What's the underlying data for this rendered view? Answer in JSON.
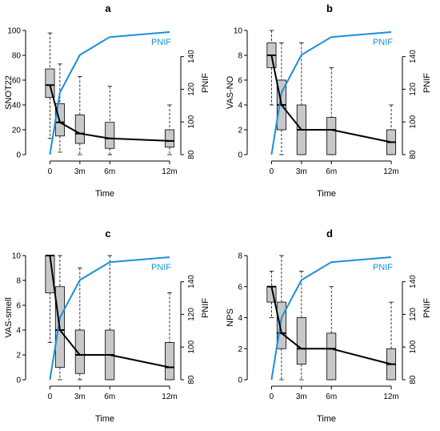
{
  "figure": {
    "panels": [
      "a",
      "b",
      "c",
      "d"
    ]
  },
  "chart_data": [
    {
      "type": "box",
      "title": "a",
      "xlabel": "Time",
      "ylabel": "SNOT22",
      "y2label": "PNIF",
      "categories": [
        "0",
        "",
        "3m",
        "6m",
        "12m"
      ],
      "x": [
        0,
        1,
        3,
        6,
        12
      ],
      "x_tick_values": [
        0,
        3,
        6,
        12
      ],
      "x_tick_labels": [
        "0",
        "3m",
        "6m",
        "12m"
      ],
      "ylim": [
        0,
        100
      ],
      "yticks": [
        0,
        20,
        40,
        60,
        80,
        100
      ],
      "y2lim": [
        80,
        156
      ],
      "y2ticks": [
        80,
        100,
        120,
        140
      ],
      "boxes": [
        {
          "x": 0,
          "min": 13,
          "q1": 46,
          "median": 56,
          "q3": 69,
          "max": 98
        },
        {
          "x": 1,
          "min": 2,
          "q1": 15,
          "median": 26,
          "q3": 41,
          "max": 73
        },
        {
          "x": 3,
          "min": 0,
          "q1": 9,
          "median": 17,
          "q3": 32,
          "max": 63
        },
        {
          "x": 6,
          "min": 0,
          "q1": 5,
          "median": 13,
          "q3": 26,
          "max": 55
        },
        {
          "x": 12,
          "min": 0,
          "q1": 6,
          "median": 11,
          "q3": 20,
          "max": 40
        }
      ],
      "medians_line": [
        56,
        26,
        17,
        13,
        11
      ],
      "pnif_line": [
        80,
        118,
        141,
        152,
        155
      ],
      "legend": "PNIF",
      "legend_position": "top-right"
    },
    {
      "type": "box",
      "title": "b",
      "xlabel": "Time",
      "ylabel": "VAS-NO",
      "y2label": "PNIF",
      "categories": [
        "0",
        "",
        "3m",
        "6m",
        "12m"
      ],
      "x": [
        0,
        1,
        3,
        6,
        12
      ],
      "x_tick_values": [
        0,
        3,
        6,
        12
      ],
      "x_tick_labels": [
        "0",
        "3m",
        "6m",
        "12m"
      ],
      "ylim": [
        0,
        10
      ],
      "yticks": [
        0,
        2,
        4,
        6,
        8,
        10
      ],
      "y2lim": [
        80,
        156
      ],
      "y2ticks": [
        80,
        100,
        120,
        140
      ],
      "boxes": [
        {
          "x": 0,
          "min": 4,
          "q1": 7,
          "median": 8,
          "q3": 9,
          "max": 10
        },
        {
          "x": 1,
          "min": 0,
          "q1": 2,
          "median": 4,
          "q3": 6,
          "max": 9
        },
        {
          "x": 3,
          "min": 0,
          "q1": 0,
          "median": 2,
          "q3": 4,
          "max": 9
        },
        {
          "x": 6,
          "min": 0,
          "q1": 0,
          "median": 2,
          "q3": 3,
          "max": 7
        },
        {
          "x": 12,
          "min": 0,
          "q1": 0,
          "median": 1,
          "q3": 2,
          "max": 4
        }
      ],
      "medians_line": [
        8,
        4,
        2,
        2,
        1
      ],
      "pnif_line": [
        80,
        118,
        141,
        152,
        155
      ],
      "legend": "PNIF",
      "legend_position": "top-right"
    },
    {
      "type": "box",
      "title": "c",
      "xlabel": "Time",
      "ylabel": "VAS-smell",
      "y2label": "PNIF",
      "categories": [
        "0",
        "",
        "3m",
        "6m",
        "12m"
      ],
      "x": [
        0,
        1,
        3,
        6,
        12
      ],
      "x_tick_values": [
        0,
        3,
        6,
        12
      ],
      "x_tick_labels": [
        "0",
        "3m",
        "6m",
        "12m"
      ],
      "ylim": [
        0,
        10
      ],
      "yticks": [
        0,
        2,
        4,
        6,
        8,
        10
      ],
      "y2lim": [
        80,
        156
      ],
      "y2ticks": [
        80,
        100,
        120,
        140
      ],
      "boxes": [
        {
          "x": 0,
          "min": 3,
          "q1": 7,
          "median": 10,
          "q3": 10,
          "max": 10
        },
        {
          "x": 1,
          "min": 0,
          "q1": 1,
          "median": 4,
          "q3": 7.5,
          "max": 10
        },
        {
          "x": 3,
          "min": 0,
          "q1": 0.5,
          "median": 2,
          "q3": 4,
          "max": 9
        },
        {
          "x": 6,
          "min": 0,
          "q1": 0,
          "median": 2,
          "q3": 4,
          "max": 10
        },
        {
          "x": 12,
          "min": 0,
          "q1": 0,
          "median": 1,
          "q3": 3,
          "max": 7
        }
      ],
      "medians_line": [
        10,
        4,
        2,
        2,
        1
      ],
      "pnif_line": [
        80,
        118,
        141,
        152,
        155
      ],
      "legend": "PNIF",
      "legend_position": "top-right"
    },
    {
      "type": "box",
      "title": "d",
      "xlabel": "Time",
      "ylabel": "NPS",
      "y2label": "PNIF",
      "categories": [
        "0",
        "",
        "3m",
        "6m",
        "12m"
      ],
      "x": [
        0,
        1,
        3,
        6,
        12
      ],
      "x_tick_values": [
        0,
        3,
        6,
        12
      ],
      "x_tick_labels": [
        "0",
        "3m",
        "6m",
        "12m"
      ],
      "ylim": [
        0,
        8
      ],
      "yticks": [
        0,
        2,
        4,
        6,
        8
      ],
      "y2lim": [
        80,
        156
      ],
      "y2ticks": [
        80,
        100,
        120,
        140
      ],
      "boxes": [
        {
          "x": 0,
          "min": 4,
          "q1": 5,
          "median": 6,
          "q3": 6,
          "max": 7
        },
        {
          "x": 1,
          "min": 0,
          "q1": 2,
          "median": 3,
          "q3": 5,
          "max": 8
        },
        {
          "x": 3,
          "min": 0,
          "q1": 1,
          "median": 2,
          "q3": 4,
          "max": 7
        },
        {
          "x": 6,
          "min": 0,
          "q1": 0,
          "median": 2,
          "q3": 3,
          "max": 6
        },
        {
          "x": 12,
          "min": 0,
          "q1": 0,
          "median": 1,
          "q3": 2,
          "max": 5
        }
      ],
      "medians_line": [
        6,
        3,
        2,
        2,
        1
      ],
      "pnif_line": [
        80,
        118,
        141,
        152,
        155
      ],
      "legend": "PNIF",
      "legend_position": "top-right"
    }
  ],
  "colors": {
    "box_fill": "#c8c8c8",
    "median_line": "#000000",
    "pnif_line": "#1a8fdc",
    "axis": "#000000"
  }
}
